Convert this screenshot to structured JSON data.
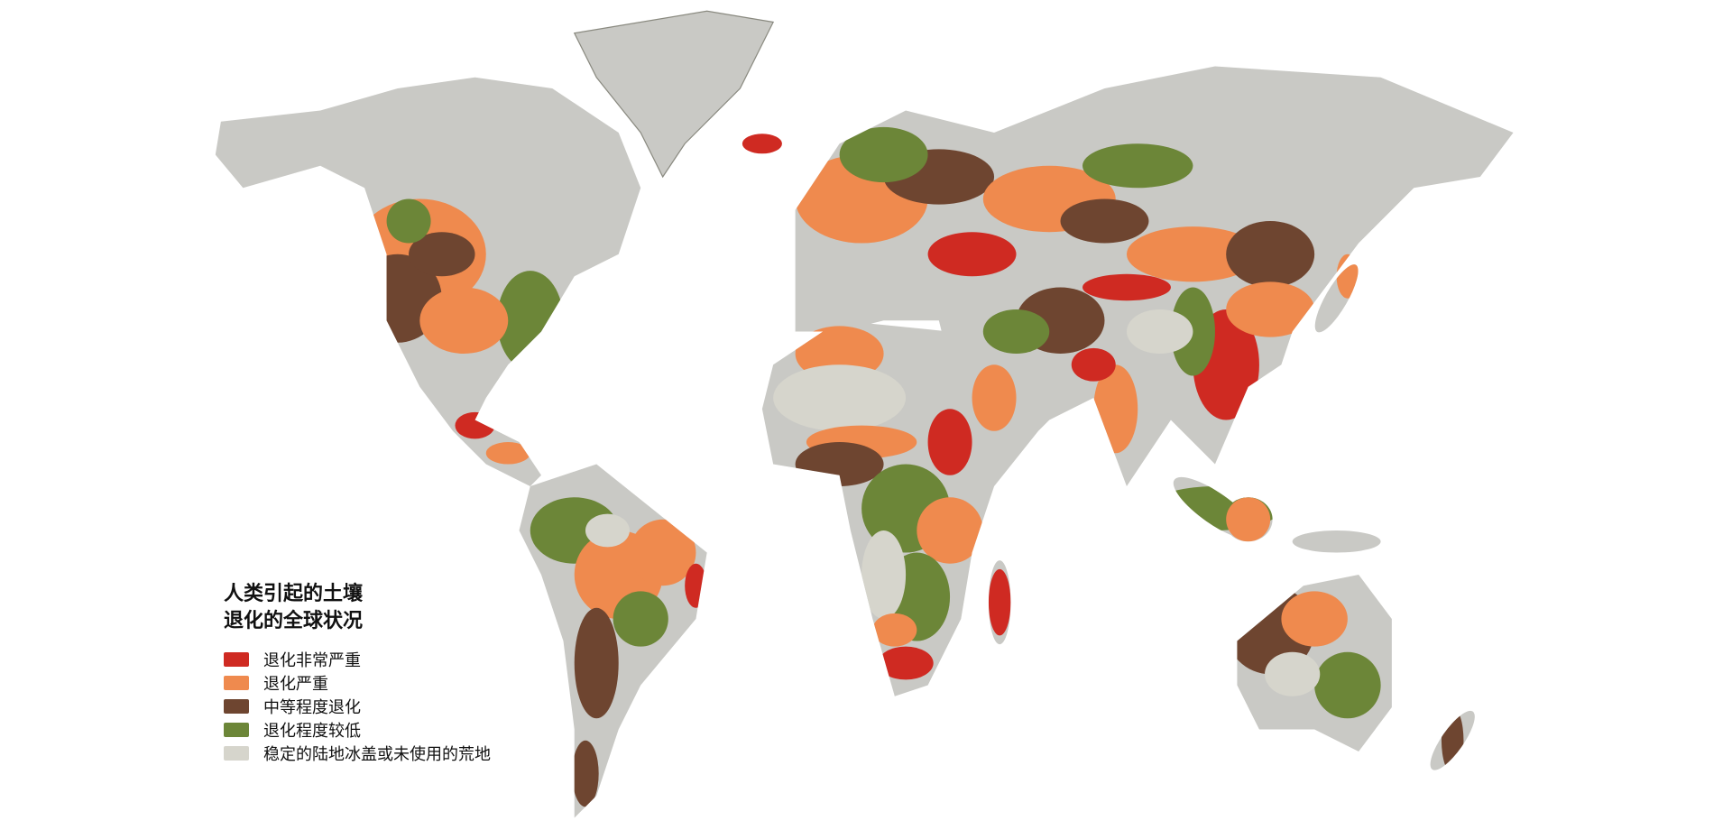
{
  "legend": {
    "title_line1": "人类引起的土壤",
    "title_line2": "退化的全球状况",
    "items": [
      {
        "label": "退化非常严重",
        "color": "#cf2a22"
      },
      {
        "label": "退化严重",
        "color": "#ef8a4e"
      },
      {
        "label": "中等程度退化",
        "color": "#6e4530"
      },
      {
        "label": "退化程度较低",
        "color": "#6c8638"
      },
      {
        "label": "稳定的陆地冰盖或未使用的荒地",
        "color": "#d6d5cc"
      }
    ]
  },
  "colors": {
    "unmapped_land": "#c9c9c5",
    "background": "#ffffff",
    "borders": "#8a8a80"
  }
}
